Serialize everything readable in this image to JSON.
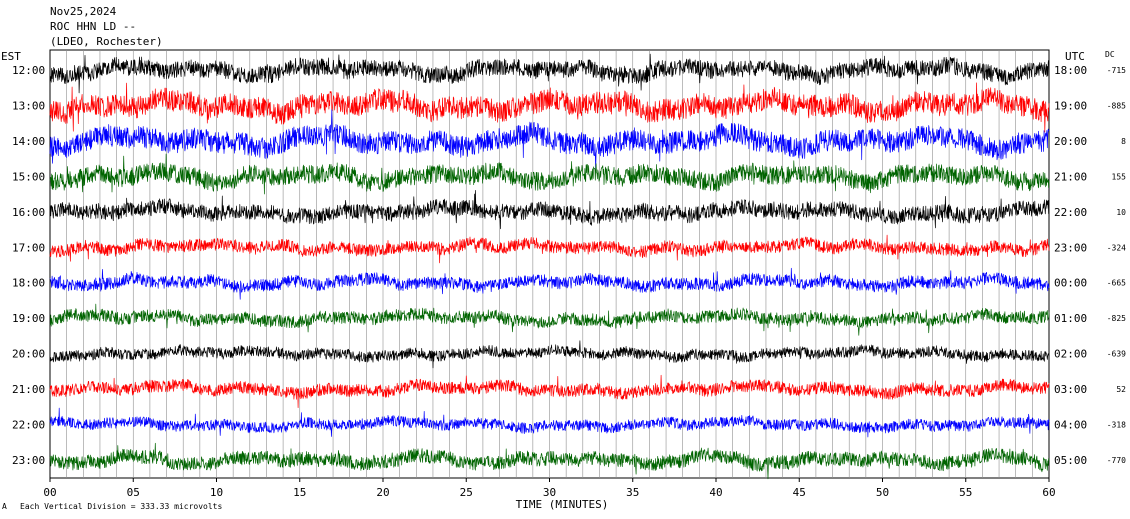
{
  "header": {
    "date": "Nov25,2024",
    "station": "ROC HHN LD --",
    "network": "(LDEO, Rochester)"
  },
  "left_zone_label": "EST",
  "right_zone_label": "UTC",
  "dc_label": "DC",
  "footer": {
    "scale_text": "Each Vertical Division =  333.33 microvolts",
    "corner_mark": "A"
  },
  "chart_data": {
    "type": "line",
    "title": "",
    "xlabel": "TIME (MINUTES)",
    "ylabel": "",
    "xlim": [
      0,
      60
    ],
    "x_ticks": [
      "00",
      "05",
      "10",
      "15",
      "20",
      "25",
      "30",
      "35",
      "40",
      "45",
      "50",
      "55",
      "60"
    ],
    "grid": true,
    "colors": [
      "#000000",
      "#ff0000",
      "#0000ff",
      "#006400"
    ],
    "rows": [
      {
        "est": "12:00",
        "utc": "18:00",
        "dc": "-715",
        "color": "#000000",
        "amplitude": 0.55
      },
      {
        "est": "13:00",
        "utc": "19:00",
        "dc": "-885",
        "color": "#ff0000",
        "amplitude": 0.7
      },
      {
        "est": "14:00",
        "utc": "20:00",
        "dc": "8",
        "color": "#0000ff",
        "amplitude": 0.7
      },
      {
        "est": "15:00",
        "utc": "21:00",
        "dc": "155",
        "color": "#006400",
        "amplitude": 0.6
      },
      {
        "est": "16:00",
        "utc": "22:00",
        "dc": "10",
        "color": "#000000",
        "amplitude": 0.5
      },
      {
        "est": "17:00",
        "utc": "23:00",
        "dc": "-324",
        "color": "#ff0000",
        "amplitude": 0.4
      },
      {
        "est": "18:00",
        "utc": "00:00",
        "dc": "-665",
        "color": "#0000ff",
        "amplitude": 0.4
      },
      {
        "est": "19:00",
        "utc": "01:00",
        "dc": "-825",
        "color": "#006400",
        "amplitude": 0.4
      },
      {
        "est": "20:00",
        "utc": "02:00",
        "dc": "-639",
        "color": "#000000",
        "amplitude": 0.35
      },
      {
        "est": "21:00",
        "utc": "03:00",
        "dc": "52",
        "color": "#ff0000",
        "amplitude": 0.4
      },
      {
        "est": "22:00",
        "utc": "04:00",
        "dc": "-318",
        "color": "#0000ff",
        "amplitude": 0.35
      },
      {
        "est": "23:00",
        "utc": "05:00",
        "dc": "-770",
        "color": "#006400",
        "amplitude": 0.45
      }
    ]
  }
}
